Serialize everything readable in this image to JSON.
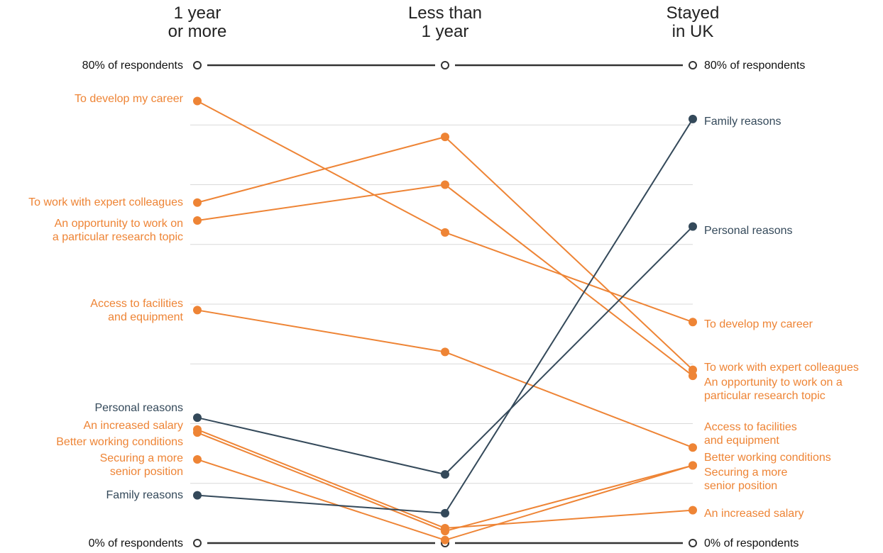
{
  "chart_data": {
    "type": "line",
    "chart_style": "slope",
    "categories": [
      [
        "1 year",
        "or more"
      ],
      [
        "Less than",
        "1 year"
      ],
      [
        "Stayed",
        "in UK"
      ]
    ],
    "y_unit": "% of respondents",
    "ylim": [
      0,
      80
    ],
    "y_top_label": "80% of respondents",
    "y_bottom_label": "0% of respondents",
    "grid": true,
    "colors": {
      "orange": "#ee8435",
      "dark": "#34495a"
    },
    "series": [
      {
        "name": "To develop my career",
        "color": "orange",
        "values": [
          74,
          52,
          37
        ],
        "labels": [
          [
            "To develop my career"
          ],
          [],
          [
            "To develop my career"
          ]
        ]
      },
      {
        "name": "To work with expert colleagues",
        "color": "orange",
        "values": [
          57,
          68,
          29
        ],
        "labels": [
          [
            "To work with expert colleagues"
          ],
          [],
          [
            "To work with expert colleagues"
          ]
        ]
      },
      {
        "name": "An opportunity to work on a particular research topic",
        "color": "orange",
        "values": [
          54,
          60,
          28
        ],
        "labels": [
          [
            "An opportunity to work on",
            "a particular research topic"
          ],
          [],
          [
            "An opportunity to work on a",
            "particular research topic"
          ]
        ]
      },
      {
        "name": "Access to facilities and equipment",
        "color": "orange",
        "values": [
          39,
          32,
          16
        ],
        "labels": [
          [
            "Access to facilities",
            "and equipment"
          ],
          [],
          [
            "Access to facilities",
            "and equipment"
          ]
        ]
      },
      {
        "name": "Personal reasons",
        "color": "dark",
        "values": [
          21,
          11.5,
          53
        ],
        "labels": [
          [
            "Personal reasons"
          ],
          [],
          [
            "Personal reasons"
          ]
        ]
      },
      {
        "name": "An increased salary",
        "color": "orange",
        "values": [
          19,
          2.5,
          5.5
        ],
        "labels": [
          [
            "An increased salary"
          ],
          [],
          [
            "An increased salary"
          ]
        ]
      },
      {
        "name": "Better working conditions",
        "color": "orange",
        "values": [
          18.5,
          2,
          13
        ],
        "labels": [
          [
            "Better working conditions"
          ],
          [],
          [
            "Better working conditions"
          ]
        ]
      },
      {
        "name": "Securing a more senior position",
        "color": "orange",
        "values": [
          14,
          0.5,
          13
        ],
        "labels": [
          [
            "Securing a more",
            "senior position"
          ],
          [],
          [
            "Securing a more",
            "senior position"
          ]
        ]
      },
      {
        "name": "Family reasons",
        "color": "dark",
        "values": [
          8,
          5,
          71
        ],
        "labels": [
          [
            "Family reasons"
          ],
          [],
          [
            "Family reasons"
          ]
        ]
      }
    ]
  }
}
